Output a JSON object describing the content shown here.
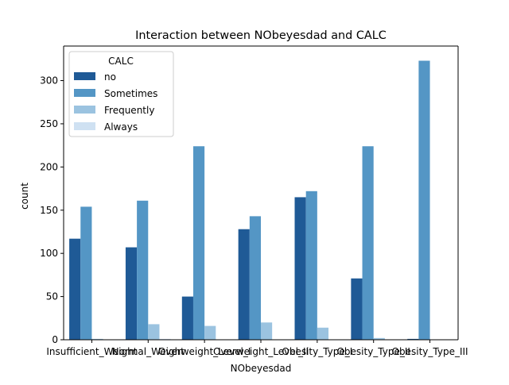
{
  "chart_data": {
    "type": "bar",
    "title": "Interaction between NObeyesdad and CALC",
    "xlabel": "NObeyesdad",
    "ylabel": "count",
    "categories": [
      "Insufficient_Weight",
      "Normal_Weight",
      "Overweight_Level_I",
      "Overweight_Level_II",
      "Obesity_Type_I",
      "Obesity_Type_II",
      "Obesity_Type_III"
    ],
    "legend_title": "CALC",
    "legend_position": "top-left",
    "ylim": [
      0,
      340
    ],
    "yticks": [
      0,
      50,
      100,
      150,
      200,
      250,
      300
    ],
    "grid": false,
    "series": [
      {
        "name": "no",
        "color": "#1f5a96",
        "values": [
          117,
          107,
          50,
          128,
          165,
          71,
          1
        ]
      },
      {
        "name": "Sometimes",
        "color": "#5496c5",
        "values": [
          154,
          161,
          224,
          143,
          172,
          224,
          323
        ]
      },
      {
        "name": "Frequently",
        "color": "#9bc3e0",
        "values": [
          1,
          18,
          16,
          20,
          14,
          2,
          0
        ]
      },
      {
        "name": "Always",
        "color": "#cfe1f2",
        "values": [
          0,
          1,
          0,
          0,
          0,
          0,
          0
        ]
      }
    ]
  }
}
